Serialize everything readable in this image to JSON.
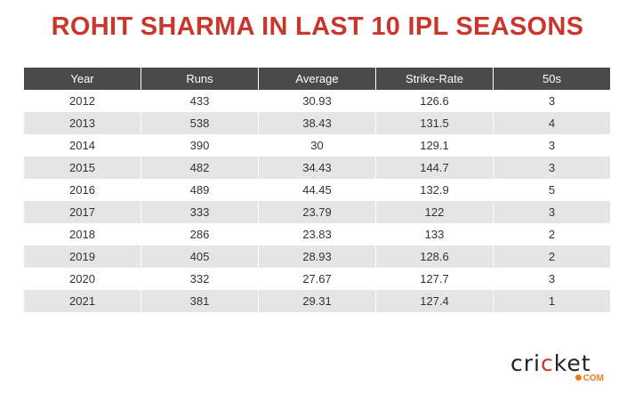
{
  "title": "ROHIT SHARMA IN LAST 10 IPL SEASONS",
  "headers": [
    "Year",
    "Runs",
    "Average",
    "Strike-Rate",
    "50s"
  ],
  "rows": [
    [
      "2012",
      "433",
      "30.93",
      "126.6",
      "3"
    ],
    [
      "2013",
      "538",
      "38.43",
      "131.5",
      "4"
    ],
    [
      "2014",
      "390",
      "30",
      "129.1",
      "3"
    ],
    [
      "2015",
      "482",
      "34.43",
      "144.7",
      "3"
    ],
    [
      "2016",
      "489",
      "44.45",
      "132.9",
      "5"
    ],
    [
      "2017",
      "333",
      "23.79",
      "122",
      "3"
    ],
    [
      "2018",
      "286",
      "23.83",
      "133",
      "2"
    ],
    [
      "2019",
      "405",
      "28.93",
      "128.6",
      "2"
    ],
    [
      "2020",
      "332",
      "27.67",
      "127.7",
      "3"
    ],
    [
      "2021",
      "381",
      "29.31",
      "127.4",
      "1"
    ]
  ],
  "logo": {
    "word_a": "cri",
    "word_b": "c",
    "word_c": "ket",
    "domain": "COM"
  }
}
